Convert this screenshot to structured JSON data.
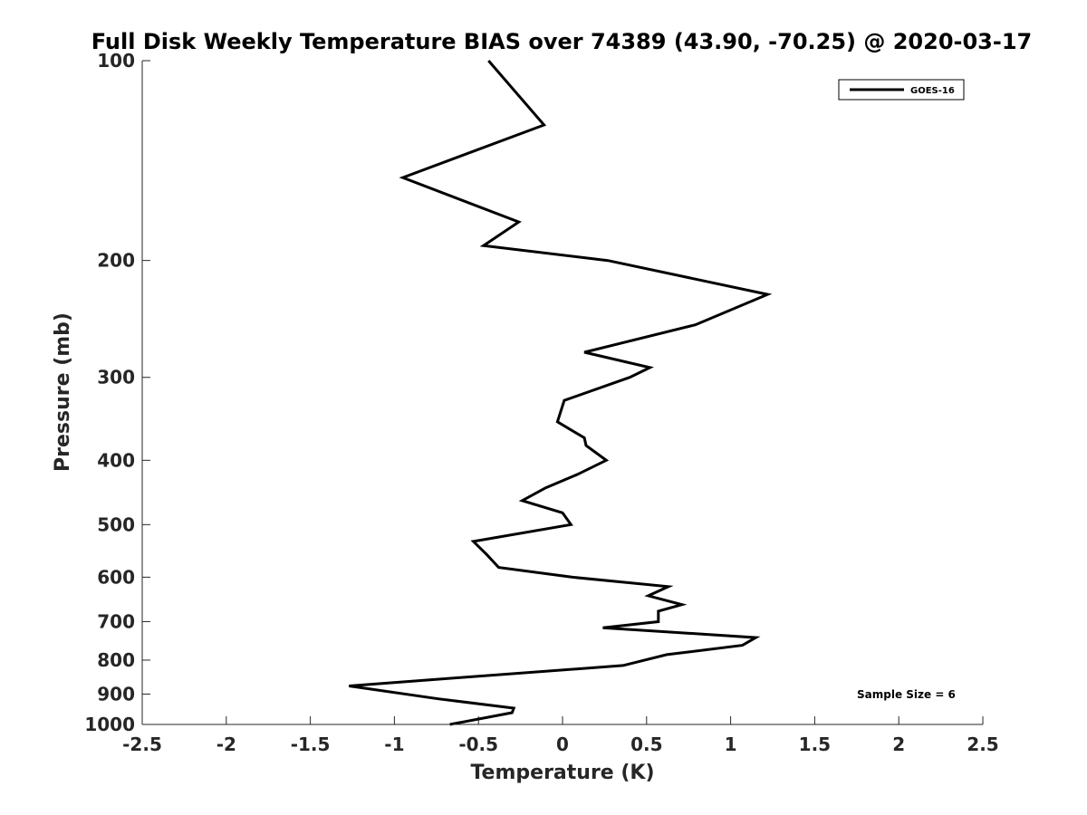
{
  "chart_data": {
    "type": "line",
    "title": "Full Disk Weekly Temperature BIAS over 74389 (43.90, -70.25) @ 2020-03-17",
    "xlabel": "Temperature (K)",
    "ylabel": "Pressure (mb)",
    "xlim": [
      -2.5,
      2.5
    ],
    "ylim": [
      1000,
      100
    ],
    "yscale": "log",
    "y_reversed": true,
    "xticks": [
      "-2.5",
      "-2",
      "-1.5",
      "-1",
      "-0.5",
      "0",
      "0.5",
      "1",
      "1.5",
      "2",
      "2.5"
    ],
    "xtick_values": [
      -2.5,
      -2,
      -1.5,
      -1,
      -0.5,
      0,
      0.5,
      1,
      1.5,
      2,
      2.5
    ],
    "yticks": [
      "100",
      "200",
      "300",
      "400",
      "500",
      "600",
      "700",
      "800",
      "900",
      "1000"
    ],
    "ytick_values": [
      100,
      200,
      300,
      400,
      500,
      600,
      700,
      800,
      900,
      1000
    ],
    "grid": false,
    "legend_position": "top-right",
    "series": [
      {
        "name": "GOES-16",
        "color": "#000000",
        "x": [
          -0.44,
          -0.11,
          -0.95,
          -0.26,
          -0.47,
          0.27,
          1.22,
          0.79,
          0.13,
          0.52,
          0.4,
          0.01,
          -0.03,
          0.13,
          0.14,
          0.26,
          0.09,
          -0.1,
          -0.24,
          0.0,
          0.05,
          -0.53,
          -0.45,
          -0.38,
          0.06,
          0.63,
          0.51,
          0.71,
          0.57,
          0.57,
          0.24,
          1.15,
          1.07,
          0.62,
          0.36,
          -0.61,
          -1.27,
          -0.74,
          -0.29,
          -0.3,
          -0.67
        ],
        "y": [
          100,
          125,
          150,
          175,
          190,
          200,
          225,
          250,
          275,
          290,
          300,
          325,
          350,
          370,
          380,
          400,
          420,
          440,
          460,
          480,
          500,
          530,
          555,
          580,
          600,
          620,
          640,
          660,
          675,
          700,
          715,
          740,
          760,
          785,
          815,
          850,
          875,
          915,
          945,
          960,
          1000
        ]
      }
    ],
    "legend": [
      "GOES-16"
    ],
    "annotation": "Sample Size = 6"
  }
}
